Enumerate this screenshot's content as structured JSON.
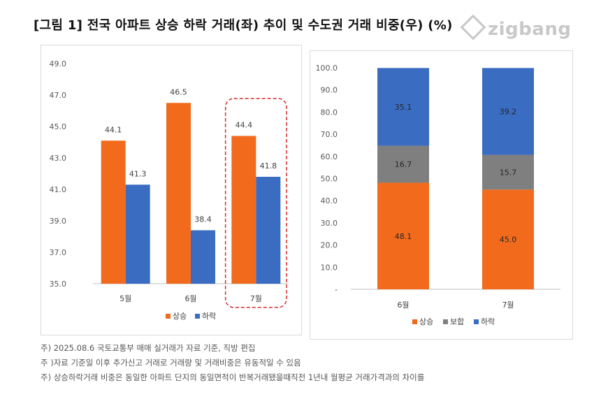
{
  "title": "[그림 1] 전국 아파트 상승 하락 거래(좌) 추이 및 수도권 거래 비중(우) (%)",
  "logo_text": "zigbang",
  "notes": [
    "주) 2025.08.6 국토교통부 매매 실거래가 자료 기준, 직방 편집",
    "주 )자료 기준일 이후 추가신고 거래로 거래량 및 거래비중은 유동적일 수 있음",
    "주) 상승하락거래 비중은 동일한 아파트 단지의 동일면적이 반복거래됐을때직전 1년내 월평균 거래가격과의 차이를"
  ],
  "chart_data": [
    {
      "type": "bar",
      "categories": [
        "5월",
        "6월",
        "7월"
      ],
      "series": [
        {
          "name": "상승",
          "values": [
            44.1,
            46.5,
            44.4
          ],
          "color": "#f26b1d"
        },
        {
          "name": "하락",
          "values": [
            41.3,
            38.4,
            41.8
          ],
          "color": "#3a6cc2"
        }
      ],
      "ylim": [
        35.0,
        49.0
      ],
      "yticks": [
        "35.0",
        "37.0",
        "39.0",
        "41.0",
        "43.0",
        "45.0",
        "47.0",
        "49.0"
      ],
      "legend": "bottom",
      "highlight_category": "7월",
      "highlight_color": "#d42b2b"
    },
    {
      "type": "bar",
      "stacked": true,
      "categories": [
        "6월",
        "7월"
      ],
      "series": [
        {
          "name": "상승",
          "values": [
            48.1,
            45.0
          ],
          "color": "#f26b1d"
        },
        {
          "name": "보합",
          "values": [
            16.7,
            15.7
          ],
          "color": "#7f7f7f"
        },
        {
          "name": "하락",
          "values": [
            35.1,
            39.2
          ],
          "color": "#3a6cc2"
        }
      ],
      "ylim": [
        0,
        100
      ],
      "yticks": [
        "-",
        "10.0",
        "20.0",
        "30.0",
        "40.0",
        "50.0",
        "60.0",
        "70.0",
        "80.0",
        "90.0",
        "100.0"
      ],
      "legend": "bottom"
    }
  ]
}
